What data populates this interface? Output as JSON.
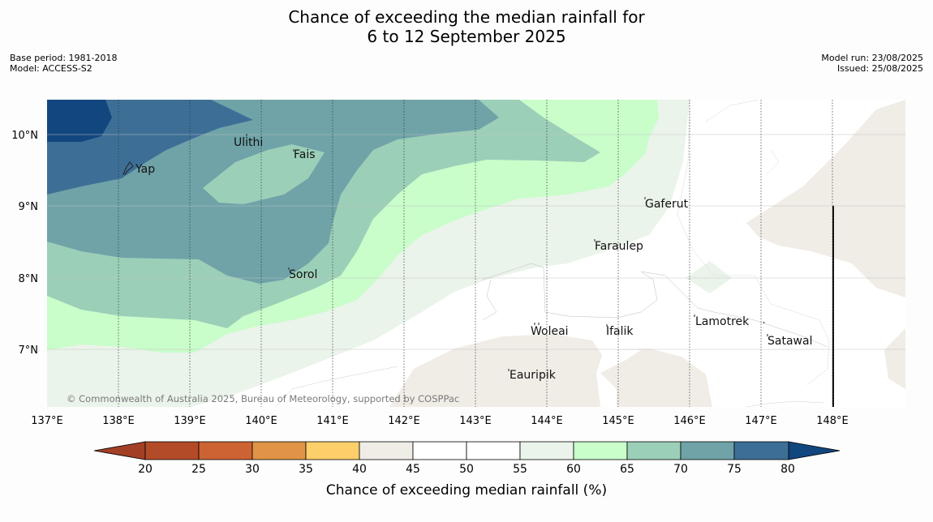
{
  "title": {
    "line1": "Chance of exceeding the median rainfall for",
    "line2": "6 to 12 September 2025"
  },
  "meta_left": [
    "Base period: 1981-2018",
    "Model: ACCESS-S2"
  ],
  "meta_right": [
    "Model run: 23/08/2025",
    "Issued: 25/08/2025"
  ],
  "copyright": "© Commonwealth of Australia 2025, Bureau of Meteorology, supported by COSPPac",
  "lon_ticks": [
    "137°E",
    "138°E",
    "139°E",
    "140°E",
    "141°E",
    "142°E",
    "143°E",
    "144°E",
    "145°E",
    "146°E",
    "147°E",
    "148°E"
  ],
  "lat_ticks": [
    "10°N",
    "9°N",
    "8°N",
    "7°N"
  ],
  "places": [
    "Yap",
    "Ulithi",
    "Fais",
    "Gaferut",
    "Faraulep",
    "Sorol",
    "Lamotrek",
    "Woleai",
    "Ifalik",
    "Satawal",
    "Eauripik"
  ],
  "colorbar": {
    "title": "Chance of exceeding median rainfall (%)",
    "ticks": [
      "20",
      "25",
      "30",
      "35",
      "40",
      "45",
      "50",
      "55",
      "60",
      "65",
      "70",
      "75",
      "80"
    ],
    "colors": [
      "#a24025",
      "#b34a28",
      "#cd6333",
      "#e19447",
      "#fdcf6a",
      "#f0ece6",
      "#ffffff",
      "#ffffff",
      "#eaf4ea",
      "#c9fdca",
      "#9ccfb8",
      "#6fa3a8",
      "#3d6f96",
      "#12467f"
    ]
  }
}
